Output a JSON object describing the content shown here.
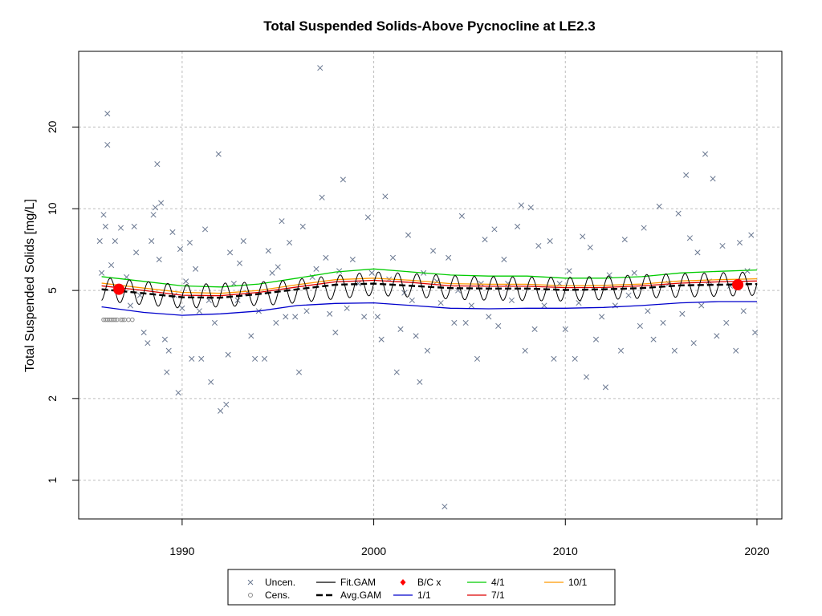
{
  "chart_data": {
    "type": "scatter",
    "title": "Total Suspended Solids-Above Pycnocline at LE2.3",
    "ylabel": "Total Suspended Solids [mg/L]",
    "xlabel": "",
    "x_ticks": [
      1990,
      2000,
      2010,
      2020
    ],
    "y_ticks": [
      1,
      2,
      5,
      10,
      20
    ],
    "y_scale": "log",
    "xlim": [
      1984.6,
      2021.3
    ],
    "ylim": [
      0.72,
      38
    ],
    "grid": true,
    "legend_position": "bottom",
    "legend": [
      {
        "label": "Uncen.",
        "symbol": "x",
        "color": "#6a7891"
      },
      {
        "label": "Cens.",
        "symbol": "circle",
        "color": "#8a8a8a"
      },
      {
        "label": "Fit.GAM",
        "symbol": "line",
        "color": "#000000"
      },
      {
        "label": "Avg.GAM",
        "symbol": "dash",
        "color": "#000000"
      },
      {
        "label": "B/C x",
        "symbol": "diamond",
        "color": "#ff0000"
      },
      {
        "label": "1/1",
        "symbol": "line",
        "color": "#0000cc"
      },
      {
        "label": "4/1",
        "symbol": "line",
        "color": "#00cc00"
      },
      {
        "label": "7/1",
        "symbol": "line",
        "color": "#dd0000"
      },
      {
        "label": "10/1",
        "symbol": "line",
        "color": "#ff9900"
      }
    ],
    "series": [
      {
        "name": "Uncen.",
        "kind": "points",
        "color": "#6a7891",
        "points": [
          [
            1985.7,
            7.6
          ],
          [
            1985.8,
            5.8
          ],
          [
            1985.9,
            9.5
          ],
          [
            1986.0,
            8.6
          ],
          [
            1986.1,
            22.4
          ],
          [
            1986.1,
            17.2
          ],
          [
            1986.3,
            6.2
          ],
          [
            1986.5,
            7.6
          ],
          [
            1986.6,
            5.0
          ],
          [
            1986.8,
            8.5
          ],
          [
            1987.1,
            5.6
          ],
          [
            1987.3,
            4.4
          ],
          [
            1987.5,
            8.6
          ],
          [
            1987.6,
            6.9
          ],
          [
            1987.8,
            4.8
          ],
          [
            1988.0,
            3.5
          ],
          [
            1988.2,
            3.2
          ],
          [
            1988.4,
            7.6
          ],
          [
            1988.5,
            9.5
          ],
          [
            1988.6,
            10.1
          ],
          [
            1988.7,
            14.6
          ],
          [
            1988.8,
            6.5
          ],
          [
            1988.9,
            10.5
          ],
          [
            1989.1,
            3.3
          ],
          [
            1989.2,
            2.5
          ],
          [
            1989.3,
            3.0
          ],
          [
            1989.5,
            8.2
          ],
          [
            1989.6,
            4.8
          ],
          [
            1989.8,
            2.1
          ],
          [
            1989.9,
            7.1
          ],
          [
            1990.0,
            4.3
          ],
          [
            1990.2,
            5.4
          ],
          [
            1990.4,
            7.5
          ],
          [
            1990.5,
            2.8
          ],
          [
            1990.7,
            6.0
          ],
          [
            1990.9,
            4.2
          ],
          [
            1991.0,
            2.8
          ],
          [
            1991.2,
            8.4
          ],
          [
            1991.4,
            4.6
          ],
          [
            1991.5,
            2.3
          ],
          [
            1991.7,
            3.8
          ],
          [
            1991.9,
            15.9
          ],
          [
            1992.0,
            1.8
          ],
          [
            1992.3,
            1.9
          ],
          [
            1992.4,
            2.9
          ],
          [
            1992.5,
            6.9
          ],
          [
            1992.7,
            5.3
          ],
          [
            1992.9,
            4.6
          ],
          [
            1993.0,
            6.3
          ],
          [
            1993.2,
            7.6
          ],
          [
            1993.4,
            4.9
          ],
          [
            1993.6,
            3.4
          ],
          [
            1993.8,
            2.8
          ],
          [
            1994.0,
            4.2
          ],
          [
            1994.3,
            2.8
          ],
          [
            1994.5,
            7.0
          ],
          [
            1994.7,
            5.8
          ],
          [
            1994.9,
            3.8
          ],
          [
            1995.0,
            6.1
          ],
          [
            1995.2,
            9.0
          ],
          [
            1995.4,
            4.0
          ],
          [
            1995.6,
            7.5
          ],
          [
            1995.9,
            4.0
          ],
          [
            1996.1,
            2.5
          ],
          [
            1996.3,
            8.6
          ],
          [
            1996.5,
            4.2
          ],
          [
            1996.8,
            5.6
          ],
          [
            1997.0,
            6.0
          ],
          [
            1997.2,
            33.0
          ],
          [
            1997.3,
            11.0
          ],
          [
            1997.5,
            6.6
          ],
          [
            1997.7,
            4.1
          ],
          [
            1998.0,
            3.5
          ],
          [
            1998.2,
            5.9
          ],
          [
            1998.4,
            12.8
          ],
          [
            1998.6,
            4.3
          ],
          [
            1998.9,
            6.5
          ],
          [
            1999.2,
            5.3
          ],
          [
            1999.5,
            4.0
          ],
          [
            1999.7,
            9.3
          ],
          [
            1999.9,
            5.8
          ],
          [
            2000.2,
            4.0
          ],
          [
            2000.4,
            3.3
          ],
          [
            2000.6,
            11.1
          ],
          [
            2000.8,
            5.5
          ],
          [
            2001.0,
            6.6
          ],
          [
            2001.2,
            2.5
          ],
          [
            2001.4,
            3.6
          ],
          [
            2001.6,
            4.9
          ],
          [
            2001.8,
            8.0
          ],
          [
            2002.0,
            4.6
          ],
          [
            2002.2,
            3.4
          ],
          [
            2002.4,
            2.3
          ],
          [
            2002.6,
            5.8
          ],
          [
            2002.8,
            3.0
          ],
          [
            2003.1,
            7.0
          ],
          [
            2003.3,
            5.4
          ],
          [
            2003.5,
            4.5
          ],
          [
            2003.7,
            0.8
          ],
          [
            2003.9,
            6.6
          ],
          [
            2004.2,
            3.8
          ],
          [
            2004.4,
            5.0
          ],
          [
            2004.6,
            9.4
          ],
          [
            2004.8,
            3.8
          ],
          [
            2005.1,
            4.4
          ],
          [
            2005.4,
            2.8
          ],
          [
            2005.6,
            5.3
          ],
          [
            2005.8,
            7.7
          ],
          [
            2006.0,
            4.0
          ],
          [
            2006.3,
            8.4
          ],
          [
            2006.5,
            3.7
          ],
          [
            2006.8,
            6.5
          ],
          [
            2007.0,
            5.3
          ],
          [
            2007.2,
            4.6
          ],
          [
            2007.5,
            8.6
          ],
          [
            2007.7,
            10.3
          ],
          [
            2007.9,
            3.0
          ],
          [
            2008.2,
            10.1
          ],
          [
            2008.4,
            3.6
          ],
          [
            2008.6,
            7.3
          ],
          [
            2008.9,
            4.4
          ],
          [
            2009.2,
            7.6
          ],
          [
            2009.4,
            2.8
          ],
          [
            2009.7,
            5.3
          ],
          [
            2010.0,
            3.6
          ],
          [
            2010.2,
            5.9
          ],
          [
            2010.5,
            2.8
          ],
          [
            2010.7,
            4.5
          ],
          [
            2010.9,
            7.9
          ],
          [
            2011.1,
            2.4
          ],
          [
            2011.3,
            7.2
          ],
          [
            2011.6,
            3.3
          ],
          [
            2011.9,
            4.0
          ],
          [
            2012.1,
            2.2
          ],
          [
            2012.3,
            5.7
          ],
          [
            2012.6,
            4.4
          ],
          [
            2012.9,
            3.0
          ],
          [
            2013.1,
            7.7
          ],
          [
            2013.3,
            4.8
          ],
          [
            2013.6,
            5.8
          ],
          [
            2013.9,
            3.7
          ],
          [
            2014.1,
            8.5
          ],
          [
            2014.3,
            4.2
          ],
          [
            2014.6,
            3.3
          ],
          [
            2014.9,
            10.2
          ],
          [
            2015.1,
            3.8
          ],
          [
            2015.4,
            5.3
          ],
          [
            2015.7,
            3.0
          ],
          [
            2015.9,
            9.6
          ],
          [
            2016.1,
            4.1
          ],
          [
            2016.3,
            13.3
          ],
          [
            2016.5,
            7.8
          ],
          [
            2016.7,
            3.2
          ],
          [
            2016.9,
            6.9
          ],
          [
            2017.1,
            4.4
          ],
          [
            2017.3,
            15.9
          ],
          [
            2017.5,
            5.4
          ],
          [
            2017.7,
            12.9
          ],
          [
            2017.9,
            3.4
          ],
          [
            2018.2,
            7.3
          ],
          [
            2018.4,
            3.8
          ],
          [
            2018.6,
            5.2
          ],
          [
            2018.9,
            3.0
          ],
          [
            2019.1,
            7.5
          ],
          [
            2019.3,
            4.2
          ],
          [
            2019.5,
            5.9
          ],
          [
            2019.7,
            8.0
          ],
          [
            2019.9,
            3.5
          ]
        ]
      },
      {
        "name": "Cens.",
        "kind": "points",
        "color": "#8a8a8a",
        "points": [
          [
            1985.9,
            3.9
          ],
          [
            1986.0,
            3.9
          ],
          [
            1986.1,
            3.9
          ],
          [
            1986.2,
            3.9
          ],
          [
            1986.3,
            3.9
          ],
          [
            1986.4,
            3.9
          ],
          [
            1986.5,
            3.9
          ],
          [
            1986.6,
            3.9
          ],
          [
            1986.8,
            3.9
          ],
          [
            1986.9,
            3.9
          ],
          [
            1987.0,
            3.9
          ],
          [
            1987.2,
            3.9
          ],
          [
            1987.4,
            3.9
          ]
        ]
      },
      {
        "name": "Fit.GAM",
        "kind": "seasonal",
        "color": "#000000",
        "x": [
          1985.8,
          1990,
          1995,
          2000,
          2005,
          2010,
          2015,
          2020
        ],
        "base": [
          5.05,
          4.75,
          4.9,
          5.3,
          5.1,
          5.05,
          5.2,
          5.3
        ],
        "amplitude": 0.1
      },
      {
        "name": "Avg.GAM",
        "kind": "line",
        "color": "#000000",
        "dash": true,
        "x": [
          1985.8,
          1988,
          1990,
          1992,
          1994,
          1996,
          1998,
          2000,
          2002,
          2004,
          2006,
          2008,
          2010,
          2012,
          2014,
          2016,
          2018,
          2020
        ],
        "y": [
          5.05,
          4.88,
          4.72,
          4.7,
          4.85,
          5.05,
          5.25,
          5.3,
          5.2,
          5.1,
          5.08,
          5.08,
          5.02,
          5.05,
          5.1,
          5.22,
          5.25,
          5.28
        ]
      },
      {
        "name": "1/1",
        "kind": "line",
        "color": "#0000cc",
        "x": [
          1985.8,
          1988,
          1990,
          1992,
          1994,
          1996,
          1998,
          2000,
          2002,
          2004,
          2006,
          2008,
          2010,
          2012,
          2014,
          2016,
          2018,
          2020
        ],
        "y": [
          4.35,
          4.15,
          4.05,
          4.1,
          4.2,
          4.4,
          4.48,
          4.5,
          4.4,
          4.3,
          4.28,
          4.3,
          4.3,
          4.33,
          4.4,
          4.5,
          4.55,
          4.55
        ]
      },
      {
        "name": "4/1",
        "kind": "line",
        "color": "#00cc00",
        "x": [
          1985.8,
          1988,
          1990,
          1992,
          1994,
          1996,
          1998,
          2000,
          2002,
          2004,
          2006,
          2008,
          2010,
          2012,
          2014,
          2016,
          2018,
          2020
        ],
        "y": [
          5.62,
          5.4,
          5.2,
          5.15,
          5.28,
          5.55,
          5.85,
          6.0,
          5.85,
          5.7,
          5.65,
          5.65,
          5.55,
          5.55,
          5.62,
          5.8,
          5.88,
          5.95
        ]
      },
      {
        "name": "7/1",
        "kind": "line",
        "color": "#dd0000",
        "x": [
          1985.8,
          1988,
          1990,
          1992,
          1994,
          1996,
          1998,
          2000,
          2002,
          2004,
          2006,
          2008,
          2010,
          2012,
          2014,
          2016,
          2018,
          2020
        ],
        "y": [
          5.2,
          5.0,
          4.8,
          4.78,
          4.92,
          5.15,
          5.38,
          5.45,
          5.35,
          5.2,
          5.18,
          5.18,
          5.12,
          5.13,
          5.2,
          5.32,
          5.38,
          5.42
        ]
      },
      {
        "name": "10/1",
        "kind": "line",
        "color": "#ff9900",
        "x": [
          1985.8,
          1988,
          1990,
          1992,
          1994,
          1996,
          1998,
          2000,
          2002,
          2004,
          2006,
          2008,
          2010,
          2012,
          2014,
          2016,
          2018,
          2020
        ],
        "y": [
          5.32,
          5.1,
          4.92,
          4.88,
          5.0,
          5.25,
          5.48,
          5.55,
          5.45,
          5.3,
          5.27,
          5.27,
          5.2,
          5.22,
          5.28,
          5.42,
          5.48,
          5.52
        ]
      },
      {
        "name": "B/C x",
        "kind": "markers",
        "color": "#ff0000",
        "points": [
          [
            1986.7,
            5.05
          ],
          [
            2019.0,
            5.25
          ]
        ]
      }
    ]
  }
}
